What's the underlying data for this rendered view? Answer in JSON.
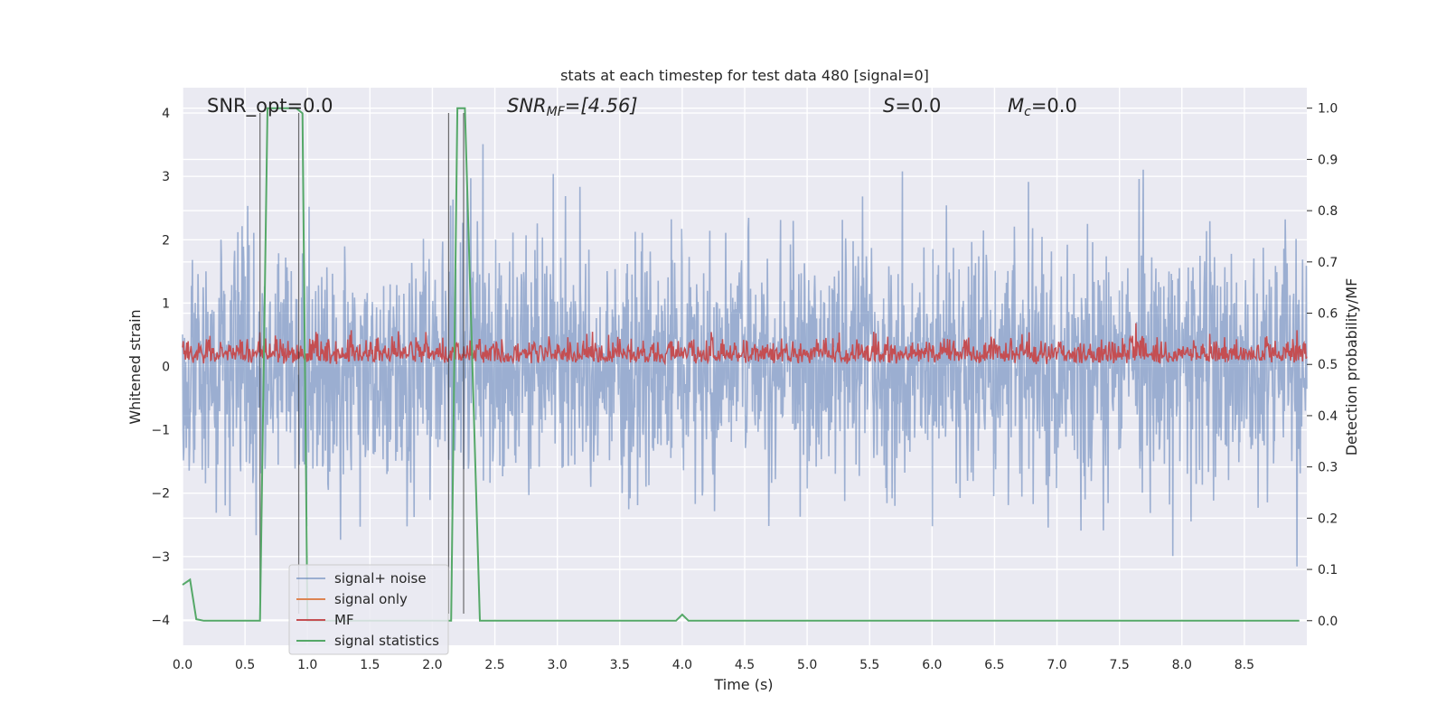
{
  "chart_data": {
    "type": "line",
    "title": "stats at each timestep for test data 480 [signal=0]",
    "xlabel": "Time (s)",
    "ylabel": "Whitened strain",
    "y2label": "Detection probability/MF",
    "xlim": [
      0,
      9.0
    ],
    "ylim": [
      -4.4,
      4.4
    ],
    "y2lim": [
      -0.048,
      1.04
    ],
    "x_ticks": [
      "0.0",
      "0.5",
      "1.0",
      "1.5",
      "2.0",
      "2.5",
      "3.0",
      "3.5",
      "4.0",
      "4.5",
      "5.0",
      "5.5",
      "6.0",
      "6.5",
      "7.0",
      "7.5",
      "8.0",
      "8.5"
    ],
    "y_ticks": [
      "4",
      "3",
      "2",
      "1",
      "0",
      "−1",
      "−2",
      "−3",
      "−4"
    ],
    "y2_ticks": [
      "1.0",
      "0.9",
      "0.8",
      "0.7",
      "0.6",
      "0.5",
      "0.4",
      "0.3",
      "0.2",
      "0.1",
      "0.0"
    ],
    "grid": true,
    "legend_position": "lower-left",
    "annotations": {
      "snr_opt": "SNR_opt=0.0",
      "snr_mf_name": "SNR",
      "snr_mf_sub": "MF",
      "snr_mf_value": "=[4.56]",
      "s_name": "S",
      "s_value": "=0.0",
      "mc_name": "M",
      "mc_sub": "c",
      "mc_value": "=0.0"
    },
    "series": [
      {
        "name": "signal+ noise",
        "color": "#4c72b0",
        "alpha": 0.5,
        "noise_std": 0.95,
        "peak_max": 3.8,
        "peak_min": -3.4
      },
      {
        "name": "signal only",
        "color": "#dd8452",
        "values": []
      },
      {
        "name": "MF",
        "color": "#c44e52",
        "axis": "right",
        "range": [
          0.5,
          0.6
        ],
        "peak_max": 0.625
      },
      {
        "name": "signal statistics",
        "color": "#55a868",
        "axis": "right",
        "x": [
          0.0,
          0.06,
          0.11,
          0.17,
          0.62,
          0.68,
          0.73,
          0.91,
          0.96,
          1.0,
          2.15,
          2.2,
          2.26,
          2.32,
          2.38,
          3.95,
          4.0,
          4.05,
          8.94
        ],
        "values": [
          0.07,
          0.08,
          0.003,
          0.0,
          0.0,
          1.0,
          1.0,
          1.0,
          0.99,
          0.0,
          0.0,
          1.0,
          1.0,
          0.5,
          0.0,
          0.0,
          0.012,
          0.0,
          0.0
        ]
      }
    ],
    "vertical_markers": [
      0.62,
      0.93,
      2.13,
      2.25
    ]
  }
}
